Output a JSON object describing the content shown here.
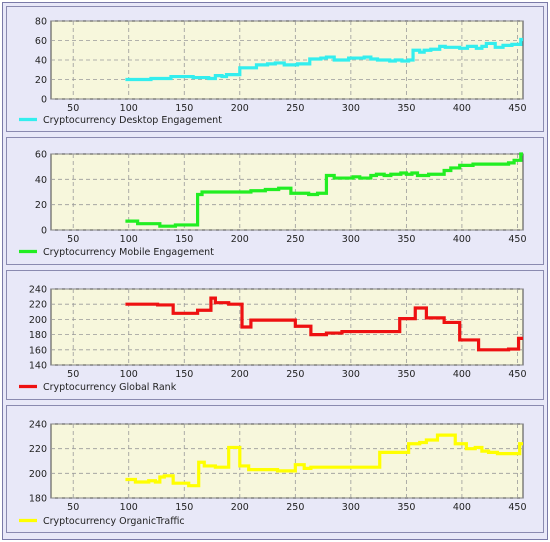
{
  "chart_data": [
    {
      "type": "line",
      "step": true,
      "xlim": [
        30,
        455
      ],
      "ylim": [
        0,
        80
      ],
      "xticks": [
        50,
        100,
        150,
        200,
        250,
        300,
        350,
        400,
        450
      ],
      "yticks": [
        0,
        20,
        40,
        60,
        80
      ],
      "grid": true,
      "legend_position": "bottom-left",
      "series": [
        {
          "name": "Cryptocurrency Desktop Engagement",
          "color": "#33eeee",
          "x": [
            97,
            120,
            138,
            158,
            172,
            178,
            184,
            188,
            200,
            215,
            225,
            232,
            240,
            252,
            263,
            273,
            278,
            285,
            298,
            312,
            318,
            324,
            335,
            340,
            346,
            352,
            356,
            362,
            366,
            372,
            380,
            385,
            398,
            405,
            413,
            418,
            422,
            430,
            437,
            445,
            453
          ],
          "y": [
            20,
            21,
            23,
            22,
            21,
            24,
            23,
            25,
            32,
            35,
            36,
            37,
            35,
            36,
            41,
            42,
            43,
            40,
            42,
            43,
            41,
            40,
            39,
            40,
            39,
            40,
            50,
            48,
            50,
            51,
            54,
            53,
            52,
            54,
            52,
            54,
            57,
            53,
            55,
            56,
            61
          ]
        },
        {
          "name": "Cryptocurrency Mobile Engagement",
          "color": "#22ee22",
          "x": [
            97,
            108,
            128,
            142,
            162,
            166,
            210,
            223,
            235,
            246,
            262,
            270,
            278,
            285,
            302,
            308,
            318,
            323,
            330,
            336,
            345,
            350,
            355,
            360,
            370,
            384,
            390,
            398,
            410,
            442,
            447,
            453
          ],
          "y": [
            7,
            5,
            3,
            4,
            28,
            30,
            31,
            32,
            33,
            29,
            28,
            29,
            43,
            41,
            42,
            41,
            43,
            44,
            43,
            44,
            45,
            44,
            45,
            43,
            44,
            47,
            49,
            51,
            52,
            53,
            55,
            60
          ]
        },
        {
          "name": "Cryptocurrency Global Rank",
          "color": "#ee1111",
          "x": [
            97,
            126,
            140,
            162,
            174,
            178,
            190,
            202,
            210,
            250,
            264,
            278,
            292,
            296,
            326,
            344,
            358,
            368,
            384,
            398,
            415,
            442,
            451
          ],
          "y": [
            220,
            219,
            208,
            212,
            228,
            222,
            220,
            190,
            199,
            191,
            180,
            182,
            184,
            184,
            184,
            201,
            215,
            202,
            196,
            173,
            160,
            161,
            175
          ]
        },
        {
          "name": "Cryptocurrency OrganicTraffic",
          "color": "#ffff00",
          "x": [
            97,
            106,
            118,
            124,
            128,
            132,
            140,
            154,
            163,
            168,
            178,
            190,
            200,
            208,
            226,
            234,
            250,
            258,
            264,
            272,
            290,
            300,
            326,
            340,
            352,
            362,
            368,
            378,
            384,
            394,
            404,
            412,
            418,
            424,
            432,
            452
          ],
          "y": [
            195,
            193,
            194,
            193,
            197,
            198,
            192,
            190,
            209,
            206,
            205,
            221,
            206,
            203,
            203,
            202,
            207,
            204,
            205,
            205,
            205,
            205,
            217,
            217,
            224,
            225,
            227,
            231,
            231,
            224,
            220,
            221,
            218,
            217,
            216,
            224
          ]
        }
      ]
    },
    {
      "type": "line",
      "xlim": [
        30,
        455
      ],
      "ylim": [
        0,
        60
      ],
      "xticks": [
        50,
        100,
        150,
        200,
        250,
        300,
        350,
        400,
        450
      ],
      "yticks": [
        0,
        20,
        40,
        60
      ]
    },
    {
      "type": "line",
      "xlim": [
        30,
        455
      ],
      "ylim": [
        140,
        240
      ],
      "xticks": [
        50,
        100,
        150,
        200,
        250,
        300,
        350,
        400,
        450
      ],
      "yticks": [
        140,
        160,
        180,
        200,
        220,
        240
      ]
    },
    {
      "type": "line",
      "xlim": [
        30,
        455
      ],
      "ylim": [
        180,
        240
      ],
      "xticks": [
        50,
        100,
        150,
        200,
        250,
        300,
        350,
        400,
        450
      ],
      "yticks": [
        180,
        200,
        220,
        240
      ]
    }
  ],
  "colors": {
    "plot_background": "#f7f7dc",
    "panel_background": "#e8e8f8",
    "grid": "#9a9a9a"
  }
}
